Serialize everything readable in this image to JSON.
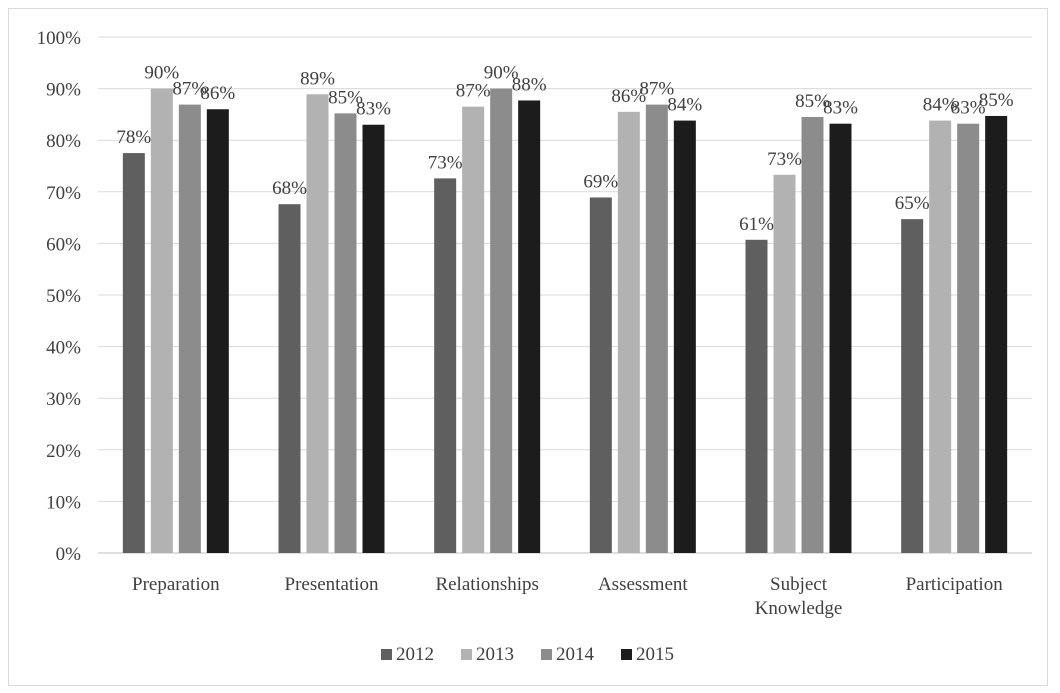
{
  "chart_data": {
    "type": "bar",
    "categories": [
      "Preparation",
      "Presentation",
      "Relationships",
      "Assessment",
      "Subject Knowledge",
      "Participation"
    ],
    "category_lines": [
      [
        "Preparation"
      ],
      [
        "Presentation"
      ],
      [
        "Relationships"
      ],
      [
        "Assessment"
      ],
      [
        "Subject",
        "Knowledge"
      ],
      [
        "Participation"
      ]
    ],
    "series": [
      {
        "name": "2012",
        "values": [
          77.5,
          67.6,
          72.6,
          68.9,
          60.7,
          64.7
        ],
        "labels": [
          "78%",
          "68%",
          "73%",
          "69%",
          "61%",
          "65%"
        ],
        "color": "#5f5f5f"
      },
      {
        "name": "2013",
        "values": [
          90.0,
          88.9,
          86.5,
          85.5,
          73.3,
          83.8
        ],
        "labels": [
          "90%",
          "89%",
          "87%",
          "86%",
          "73%",
          "84%"
        ],
        "color": "#b2b2b2"
      },
      {
        "name": "2014",
        "values": [
          86.9,
          85.2,
          90.0,
          86.9,
          84.5,
          83.2
        ],
        "labels": [
          "87%",
          "85%",
          "90%",
          "87%",
          "85%",
          "83%"
        ],
        "color": "#8c8c8c"
      },
      {
        "name": "2015",
        "values": [
          86.0,
          83.0,
          87.7,
          83.8,
          83.2,
          84.7
        ],
        "labels": [
          "86%",
          "83%",
          "88%",
          "84%",
          "83%",
          "85%"
        ],
        "color": "#1c1c1c"
      }
    ],
    "yticks": [
      "0%",
      "10%",
      "20%",
      "30%",
      "40%",
      "50%",
      "60%",
      "70%",
      "80%",
      "90%",
      "100%"
    ],
    "ylim": [
      0,
      100
    ],
    "grid": true,
    "legend_position": "bottom"
  }
}
